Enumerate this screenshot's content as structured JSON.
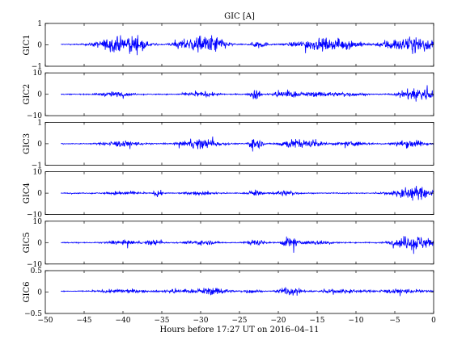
{
  "chart_data": {
    "type": "line",
    "title": "GIC [A]",
    "xlabel": "Hours before  17:27 UT on 2016–04–11",
    "xlim": [
      -50,
      0
    ],
    "xticks": [
      -50,
      -45,
      -40,
      -35,
      -30,
      -25,
      -20,
      -15,
      -10,
      -5,
      0
    ],
    "x_range_data": [
      -48,
      0
    ],
    "line_color": "#0000ff",
    "grid": false,
    "panels": [
      {
        "ylabel": "GIC1",
        "ylim": [
          -1,
          1
        ],
        "yticks": [
          -1,
          0,
          1
        ],
        "baseline": 0.02,
        "noise": 0.02,
        "bursts": [
          [
            -41,
            2.5,
            0.35
          ],
          [
            -38.5,
            1.5,
            0.3
          ],
          [
            -30.5,
            2.5,
            0.4
          ],
          [
            -28,
            1.5,
            0.3
          ],
          [
            -22.5,
            1,
            0.2
          ],
          [
            -15,
            3,
            0.3
          ],
          [
            -11,
            2,
            0.2
          ],
          [
            -5.5,
            1.5,
            0.3
          ],
          [
            -2,
            2,
            0.45
          ]
        ]
      },
      {
        "ylabel": "GIC2",
        "ylim": [
          -10,
          10
        ],
        "yticks": [
          -10,
          0,
          10
        ],
        "baseline": 0,
        "noise": 0.25,
        "bursts": [
          [
            -41,
            2,
            1.2
          ],
          [
            -30,
            2,
            1.2
          ],
          [
            -23,
            0.6,
            3.2
          ],
          [
            -19,
            1.5,
            2.2
          ],
          [
            -15,
            2,
            1.2
          ],
          [
            -11,
            2,
            1
          ],
          [
            -2,
            2,
            4
          ]
        ]
      },
      {
        "ylabel": "GIC3",
        "ylim": [
          -1,
          1
        ],
        "yticks": [
          -1,
          0,
          1
        ],
        "baseline": 0,
        "noise": 0.02,
        "bursts": [
          [
            -40,
            2.5,
            0.15
          ],
          [
            -30,
            2.5,
            0.25
          ],
          [
            -23,
            0.8,
            0.35
          ],
          [
            -18.5,
            1.5,
            0.2
          ],
          [
            -16,
            2,
            0.15
          ],
          [
            -10.5,
            2,
            0.12
          ],
          [
            -3,
            2,
            0.2
          ]
        ]
      },
      {
        "ylabel": "GIC4",
        "ylim": [
          -10,
          10
        ],
        "yticks": [
          -10,
          0,
          10
        ],
        "baseline": 0,
        "noise": 0.25,
        "bursts": [
          [
            -40,
            2,
            0.8
          ],
          [
            -35.5,
            0.5,
            1.8
          ],
          [
            -30,
            2,
            0.8
          ],
          [
            -23,
            0.8,
            1.6
          ],
          [
            -19,
            1.5,
            1.3
          ],
          [
            -2.5,
            2.5,
            3.5
          ]
        ]
      },
      {
        "ylabel": "GIC5",
        "ylim": [
          -10,
          10
        ],
        "yticks": [
          -10,
          0,
          10
        ],
        "baseline": 0,
        "noise": 0.25,
        "bursts": [
          [
            -40,
            2,
            1
          ],
          [
            -36,
            1,
            1.3
          ],
          [
            -30,
            2,
            1
          ],
          [
            -23,
            1,
            1.5
          ],
          [
            -18.5,
            1,
            3
          ],
          [
            -15,
            2,
            1
          ],
          [
            -2.5,
            2.5,
            4
          ]
        ]
      },
      {
        "ylabel": "GIC6",
        "ylim": [
          -0.5,
          0.5
        ],
        "yticks": [
          -0.5,
          0,
          0.5
        ],
        "baseline": 0.02,
        "noise": 0.01,
        "bursts": [
          [
            -40,
            3,
            0.05
          ],
          [
            -33,
            2,
            0.05
          ],
          [
            -28.5,
            2,
            0.1
          ],
          [
            -23.5,
            1,
            0.06
          ],
          [
            -18.5,
            1.5,
            0.1
          ],
          [
            -12,
            3,
            0.05
          ],
          [
            -4,
            3,
            0.06
          ]
        ]
      }
    ]
  }
}
